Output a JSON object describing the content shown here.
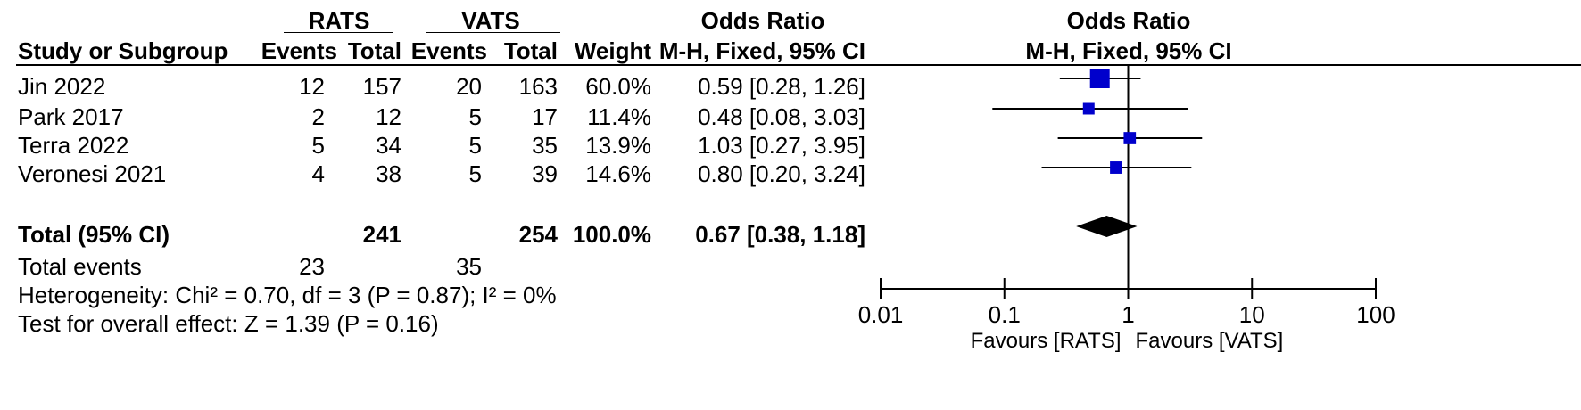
{
  "header": {
    "group1": "RATS",
    "group2": "VATS",
    "or_title_table": "Odds Ratio",
    "or_title_plot": "Odds Ratio",
    "study_col": "Study or Subgroup",
    "events1": "Events",
    "total1": "Total",
    "events2": "Events",
    "total2": "Total",
    "weight": "Weight",
    "method_table": "M-H, Fixed, 95% CI",
    "method_plot": "M-H, Fixed, 95% CI"
  },
  "studies": [
    {
      "name": "Jin 2022",
      "e1": "12",
      "t1": "157",
      "e2": "20",
      "t2": "163",
      "weight": "60.0%",
      "ci_text": "0.59 [0.28, 1.26]"
    },
    {
      "name": "Park 2017",
      "e1": "2",
      "t1": "12",
      "e2": "5",
      "t2": "17",
      "weight": "11.4%",
      "ci_text": "0.48 [0.08, 3.03]"
    },
    {
      "name": "Terra 2022",
      "e1": "5",
      "t1": "34",
      "e2": "5",
      "t2": "35",
      "weight": "13.9%",
      "ci_text": "1.03 [0.27, 3.95]"
    },
    {
      "name": "Veronesi 2021",
      "e1": "4",
      "t1": "38",
      "e2": "5",
      "t2": "39",
      "weight": "14.6%",
      "ci_text": "0.80 [0.20, 3.24]"
    }
  ],
  "total": {
    "label": "Total (95% CI)",
    "t1": "241",
    "t2": "254",
    "weight": "100.0%",
    "ci_text": "0.67 [0.38, 1.18]"
  },
  "total_events": {
    "label": "Total events",
    "e1": "23",
    "e2": "35"
  },
  "heterogeneity": "Heterogeneity: Chi² = 0.70, df = 3 (P = 0.87); I² = 0%",
  "overall_effect": "Test for overall effect: Z = 1.39 (P = 0.16)",
  "axis": {
    "ticks": [
      "0.01",
      "0.1",
      "1",
      "10",
      "100"
    ],
    "favours_left": "Favours [RATS]",
    "favours_right": "Favours [VATS]"
  },
  "colors": {
    "square": "#0000CC",
    "diamond": "#000000"
  },
  "chart_data": {
    "type": "forest",
    "scale": "log",
    "xlim": [
      0.01,
      100
    ],
    "reference_line": 1,
    "studies": [
      {
        "name": "Jin 2022",
        "or": 0.59,
        "lo": 0.28,
        "hi": 1.26,
        "weight": 60.0
      },
      {
        "name": "Park 2017",
        "or": 0.48,
        "lo": 0.08,
        "hi": 3.03,
        "weight": 11.4
      },
      {
        "name": "Terra 2022",
        "or": 1.03,
        "lo": 0.27,
        "hi": 3.95,
        "weight": 13.9
      },
      {
        "name": "Veronesi 2021",
        "or": 0.8,
        "lo": 0.2,
        "hi": 3.24,
        "weight": 14.6
      }
    ],
    "pooled": {
      "or": 0.67,
      "lo": 0.38,
      "hi": 1.18
    }
  }
}
